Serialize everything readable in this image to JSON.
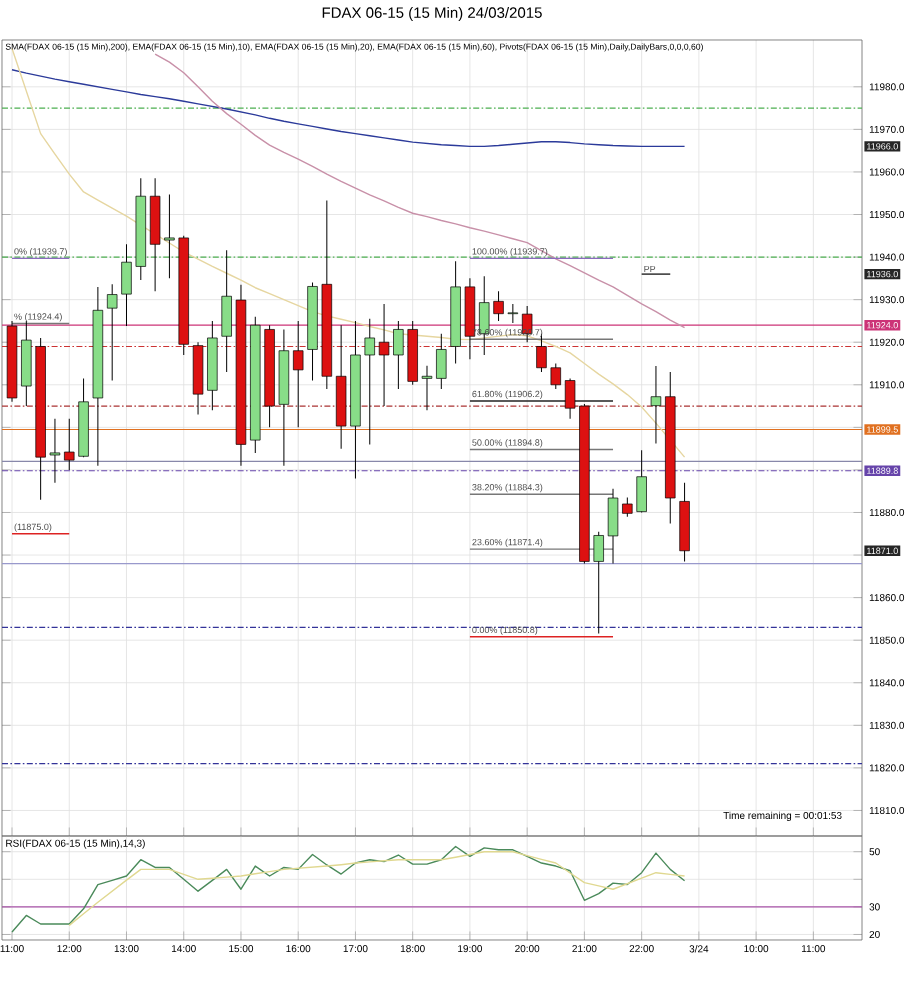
{
  "chart_data": [
    {
      "type": "candlestick",
      "title": "FDAX 06-15 (15 Min)  24/03/2015",
      "subtitle": "SMA(FDAX 06-15 (15 Min),200), EMA(FDAX 06-15 (15 Min),10), EMA(FDAX 06-15 (15 Min),20), EMA(FDAX 06-15 (15 Min),60), Pivots(FDAX 06-15 (15 Min),Daily,DailyBars,0,0,0,60)",
      "categories": [
        "11:00",
        null,
        null,
        null,
        "12:00",
        null,
        null,
        null,
        "13:00",
        null,
        null,
        null,
        "14:00",
        null,
        null,
        null,
        "15:00",
        null,
        null,
        null,
        "16:00",
        null,
        null,
        null,
        "17:00",
        null,
        null,
        null,
        "18:00",
        null,
        null,
        null,
        "19:00",
        null,
        null,
        null,
        "20:00",
        null,
        null,
        null,
        "21:00",
        null,
        null,
        null,
        "22:00",
        null,
        null,
        null,
        "3/24",
        null,
        null,
        null,
        "10:00",
        null,
        null,
        null,
        "11:00",
        null,
        null,
        null
      ],
      "ohlc": [
        [
          11923.8,
          11925,
          11906,
          11906.9
        ],
        [
          11909.7,
          11925,
          11905,
          11920.5
        ],
        [
          11919,
          11921,
          11883,
          11893
        ],
        [
          11893.5,
          11902,
          11887,
          11894
        ],
        [
          11894.2,
          11902,
          11890,
          11892.3
        ],
        [
          11893.2,
          11911.5,
          11893,
          11906
        ],
        [
          11906.9,
          11933,
          11891,
          11927.5
        ],
        [
          11928,
          11933.6,
          11911,
          11931.2
        ],
        [
          11931.3,
          11943,
          11923.8,
          11938.8
        ],
        [
          11937.8,
          11958.5,
          11934.6,
          11954.3
        ],
        [
          11954.3,
          11958.5,
          11932,
          11943
        ],
        [
          11944,
          11954.7,
          11935,
          11944.5
        ],
        [
          11944.5,
          11945,
          11917,
          11919.5
        ],
        [
          11919.2,
          11920,
          11903,
          11907.8
        ],
        [
          11908.7,
          11925,
          11904,
          11921
        ],
        [
          11921.4,
          11941.6,
          11913,
          11930.8
        ],
        [
          11929.9,
          11933.5,
          11891,
          11896
        ],
        [
          11897,
          11926,
          11894,
          11924
        ],
        [
          11923,
          11924,
          11900,
          11905
        ],
        [
          11905.4,
          11923,
          11891,
          11918
        ],
        [
          11918,
          11925,
          11900,
          11913.5
        ],
        [
          11918.3,
          11934,
          11911,
          11933.1
        ],
        [
          11933.6,
          11953.3,
          11909,
          11912
        ],
        [
          11912,
          11924,
          11895,
          11900.3
        ],
        [
          11900.3,
          11925,
          11888,
          11917
        ],
        [
          11917,
          11925.5,
          11896,
          11921
        ],
        [
          11920,
          11929,
          11905,
          11917
        ],
        [
          11917,
          11925,
          11909,
          11923
        ],
        [
          11923,
          11925,
          11910,
          11910.8
        ],
        [
          11911.5,
          11914.5,
          11904,
          11912
        ],
        [
          11911.5,
          11922,
          11909,
          11918.3
        ],
        [
          11919,
          11939,
          11915,
          11933
        ],
        [
          11933,
          11935,
          11916,
          11921.4
        ],
        [
          11922,
          11935.5,
          11917,
          11929.3
        ],
        [
          11929.6,
          11932,
          11925,
          11926.7
        ],
        [
          11926.7,
          11929,
          11924.5,
          11926.9
        ],
        [
          11926.6,
          11928.5,
          11920,
          11922
        ],
        [
          11919,
          11922,
          11913,
          11914
        ],
        [
          11914,
          11915,
          11909,
          11910
        ],
        [
          11911,
          11911.5,
          11902,
          11904.5
        ],
        [
          11905,
          11905.5,
          11868,
          11868.5
        ],
        [
          11868.5,
          11875.5,
          11851.6,
          11874.6
        ],
        [
          11874.5,
          11885.6,
          11868,
          11883.4
        ],
        [
          11882,
          11883.5,
          11879,
          11879.8
        ],
        [
          11880.2,
          11894.6,
          11880,
          11888.4
        ],
        [
          11905.1,
          11914.4,
          11896.2,
          11907.2
        ],
        [
          11907.2,
          11913,
          11877.4,
          11883.4
        ],
        [
          11882.6,
          11887,
          11868.5,
          11871.0
        ],
        null,
        null,
        null,
        null,
        null,
        null,
        null,
        null,
        null,
        null,
        null,
        null
      ],
      "series": [
        {
          "type": "line",
          "color": "#2b3a9a",
          "values": [
            11984,
            11983.2,
            11982.5,
            11981.8,
            11981.2,
            11980.6,
            11980,
            11979.4,
            11978.8,
            11978.2,
            11977.7,
            11977.2,
            11976.6,
            11976,
            11975.4,
            11974.8,
            11974.1,
            11973.4,
            11972.6,
            11971.9,
            11971.3,
            11970.7,
            11970.1,
            11969.5,
            11969,
            11968.5,
            11968,
            11967.5,
            11967,
            11966.7,
            11966.4,
            11966.2,
            11966,
            11966,
            11966.2,
            11966.5,
            11966.8,
            11967.1,
            11967.1,
            11966.9,
            11966.6,
            11966.4,
            11966.2,
            11966.1,
            11966,
            11966,
            11966,
            11966,
            null,
            null,
            null,
            null,
            null,
            null,
            null,
            null,
            null,
            null,
            null,
            null
          ]
        },
        {
          "type": "line",
          "color": "#c890a8",
          "values": [
            null,
            null,
            null,
            null,
            null,
            null,
            null,
            null,
            null,
            null,
            11987.7,
            11985.8,
            11983.3,
            11980,
            11976.6,
            11973.7,
            11971.2,
            11968.6,
            11966.3,
            11964.6,
            11963,
            11961.3,
            11959.5,
            11957.8,
            11956.2,
            11954.6,
            11953.2,
            11951.7,
            11950.3,
            11949.5,
            11948.6,
            11947.8,
            11946.9,
            11946.1,
            11945.2,
            11944.3,
            11943.4,
            11941.5,
            11939.6,
            11938,
            11936.3,
            11934.6,
            11933,
            11931,
            11929,
            11927.2,
            11925.2,
            11923.4,
            null,
            null,
            null,
            null,
            null,
            null,
            null,
            null,
            null,
            null,
            null,
            null
          ]
        },
        {
          "type": "line",
          "color": "#e6d6a0",
          "values": [
            11989,
            11979,
            11969,
            11964.2,
            11959.5,
            11955.3,
            11953.4,
            11951.5,
            11949.6,
            11947.5,
            11945.4,
            11943.3,
            11941.2,
            11939.5,
            11937.8,
            11936.2,
            11934.6,
            11932.8,
            11931.4,
            11930,
            11928.6,
            11927.2,
            11926.2,
            11925.4,
            11924.6,
            11923.7,
            11922.9,
            11922,
            11921.7,
            11921.4,
            11921.1,
            11920.7,
            11920.6,
            11921,
            11921.4,
            11921.8,
            11921.5,
            11920.3,
            11919,
            11917.5,
            11915,
            11912.5,
            11910.2,
            11907.7,
            11904.8,
            11901,
            11897,
            11893,
            null,
            null,
            null,
            null,
            null,
            null,
            null,
            null,
            null,
            null,
            null,
            null
          ]
        },
        {
          "type": "line",
          "color": "#8a6abf",
          "values": [
            null,
            null,
            null,
            null,
            null,
            null,
            null,
            null,
            null,
            null,
            null,
            null,
            null,
            null,
            null,
            null,
            null,
            null,
            null,
            null,
            null,
            null,
            null,
            null,
            null,
            null,
            null,
            null,
            null,
            null,
            null,
            null,
            11939.7,
            11939.7,
            11939.7,
            11939.7,
            11939.7,
            11939.7,
            11939.7,
            11939.7,
            11939.7,
            11939.7,
            11939.7,
            null,
            null,
            null,
            null,
            null,
            null,
            null,
            null,
            null,
            null,
            null,
            null,
            null,
            null,
            null,
            null,
            null
          ]
        },
        {
          "type": "line",
          "color": "#777777",
          "values": [
            null,
            null,
            null,
            null,
            null,
            null,
            null,
            null,
            null,
            null,
            null,
            null,
            null,
            null,
            null,
            null,
            null,
            null,
            null,
            null,
            null,
            null,
            null,
            null,
            null,
            null,
            null,
            null,
            null,
            null,
            null,
            null,
            11920.7,
            11920.7,
            11920.7,
            11920.7,
            11920.7,
            11920.7,
            11920.7,
            11920.7,
            11920.7,
            11920.7,
            11920.7,
            null,
            null,
            null,
            null,
            null,
            null,
            null,
            null,
            null,
            null,
            null,
            null,
            null,
            null,
            null,
            null,
            null
          ]
        },
        {
          "type": "line",
          "color": "#222222",
          "values": [
            null,
            null,
            null,
            null,
            null,
            null,
            null,
            null,
            null,
            null,
            null,
            null,
            null,
            null,
            null,
            null,
            null,
            null,
            null,
            null,
            null,
            null,
            null,
            null,
            null,
            null,
            null,
            null,
            null,
            null,
            null,
            null,
            11906.2,
            11906.2,
            11906.2,
            11906.2,
            11906.2,
            11906.2,
            11906.2,
            11906.2,
            11906.2,
            11906.2,
            11906.2,
            null,
            null,
            null,
            null,
            null,
            null,
            null,
            null,
            null,
            null,
            null,
            null,
            null,
            null,
            null,
            null,
            null
          ]
        },
        {
          "type": "line",
          "color": "#777777",
          "values": [
            null,
            null,
            null,
            null,
            null,
            null,
            null,
            null,
            null,
            null,
            null,
            null,
            null,
            null,
            null,
            null,
            null,
            null,
            null,
            null,
            null,
            null,
            null,
            null,
            null,
            null,
            null,
            null,
            null,
            null,
            null,
            null,
            11894.8,
            11894.8,
            11894.8,
            11894.8,
            11894.8,
            11894.8,
            11894.8,
            11894.8,
            11894.8,
            11894.8,
            11894.8,
            null,
            null,
            null,
            null,
            null,
            null,
            null,
            null,
            null,
            null,
            null,
            null,
            null,
            null,
            null,
            null,
            null
          ]
        },
        {
          "type": "line",
          "color": "#777777",
          "values": [
            null,
            null,
            null,
            null,
            null,
            null,
            null,
            null,
            null,
            null,
            null,
            null,
            null,
            null,
            null,
            null,
            null,
            null,
            null,
            null,
            null,
            null,
            null,
            null,
            null,
            null,
            null,
            null,
            null,
            null,
            null,
            null,
            11884.3,
            11884.3,
            11884.3,
            11884.3,
            11884.3,
            11884.3,
            11884.3,
            11884.3,
            11884.3,
            11884.3,
            11884.3,
            null,
            null,
            null,
            null,
            null,
            null,
            null,
            null,
            null,
            null,
            null,
            null,
            null,
            null,
            null,
            null,
            null
          ]
        },
        {
          "type": "line",
          "color": "#777777",
          "values": [
            null,
            null,
            null,
            null,
            null,
            null,
            null,
            null,
            null,
            null,
            null,
            null,
            null,
            null,
            null,
            null,
            null,
            null,
            null,
            null,
            null,
            null,
            null,
            null,
            null,
            null,
            null,
            null,
            null,
            null,
            null,
            null,
            11871.4,
            11871.4,
            11871.4,
            11871.4,
            11871.4,
            11871.4,
            11871.4,
            11871.4,
            11871.4,
            11871.4,
            11871.4,
            null,
            null,
            null,
            null,
            null,
            null,
            null,
            null,
            null,
            null,
            null,
            null,
            null,
            null,
            null,
            null,
            null
          ]
        },
        {
          "type": "line",
          "color": "#dd2222",
          "values": [
            null,
            null,
            null,
            null,
            null,
            null,
            null,
            null,
            null,
            null,
            null,
            null,
            null,
            null,
            null,
            null,
            null,
            null,
            null,
            null,
            null,
            null,
            null,
            null,
            null,
            null,
            null,
            null,
            null,
            null,
            null,
            null,
            11850.8,
            11850.8,
            11850.8,
            11850.8,
            11850.8,
            11850.8,
            11850.8,
            11850.8,
            11850.8,
            11850.8,
            11850.8,
            null,
            null,
            null,
            null,
            null,
            null,
            null,
            null,
            null,
            null,
            null,
            null,
            null,
            null,
            null,
            null,
            null
          ]
        },
        {
          "type": "line",
          "color": "#8a6abf",
          "values": [
            11939.7,
            11939.7,
            11939.7,
            11939.7,
            11939.7,
            null,
            null,
            null,
            null,
            null,
            null,
            null,
            null,
            null,
            null,
            null,
            null,
            null,
            null,
            null,
            null,
            null,
            null,
            null,
            null,
            null,
            null,
            null,
            null,
            null,
            null,
            null,
            null,
            null,
            null,
            null,
            null,
            null,
            null,
            null,
            null,
            null,
            null,
            null,
            null,
            null,
            null,
            null,
            null,
            null,
            null,
            null,
            null,
            null,
            null,
            null,
            null,
            null,
            null,
            null
          ]
        },
        {
          "type": "line",
          "color": "#777777",
          "values": [
            11924.4,
            11924.4,
            11924.4,
            11924.4,
            11924.4,
            null,
            null,
            null,
            null,
            null,
            null,
            null,
            null,
            null,
            null,
            null,
            null,
            null,
            null,
            null,
            null,
            null,
            null,
            null,
            null,
            null,
            null,
            null,
            null,
            null,
            null,
            null,
            null,
            null,
            null,
            null,
            null,
            null,
            null,
            null,
            null,
            null,
            null,
            null,
            null,
            null,
            null,
            null,
            null,
            null,
            null,
            null,
            null,
            null,
            null,
            null,
            null,
            null,
            null,
            null
          ]
        },
        {
          "type": "line",
          "color": "#dd2222",
          "values": [
            11875,
            11875,
            11875,
            11875,
            11875,
            null,
            null,
            null,
            null,
            null,
            null,
            null,
            null,
            null,
            null,
            null,
            null,
            null,
            null,
            null,
            null,
            null,
            null,
            null,
            null,
            null,
            null,
            null,
            null,
            null,
            null,
            null,
            null,
            null,
            null,
            null,
            null,
            null,
            null,
            null,
            null,
            null,
            null,
            null,
            null,
            null,
            null,
            null,
            null,
            null,
            null,
            null,
            null,
            null,
            null,
            null,
            null,
            null,
            null,
            null
          ]
        },
        {
          "type": "line",
          "color": "#222222",
          "values": [
            null,
            null,
            null,
            null,
            null,
            null,
            null,
            null,
            null,
            null,
            null,
            null,
            null,
            null,
            null,
            null,
            null,
            null,
            null,
            null,
            null,
            null,
            null,
            null,
            null,
            null,
            null,
            null,
            null,
            null,
            null,
            null,
            null,
            null,
            null,
            null,
            null,
            null,
            null,
            null,
            null,
            null,
            null,
            null,
            11936,
            11936,
            11936,
            null,
            null,
            null,
            null,
            null,
            null,
            null,
            null,
            null,
            null,
            null,
            null,
            null
          ]
        }
      ],
      "ylim": [
        11804,
        11991
      ],
      "yticks": [
        {
          "value": 11810,
          "label": "11810.0"
        },
        {
          "value": 11820,
          "label": "11820.0"
        },
        {
          "value": 11830,
          "label": "11830.0"
        },
        {
          "value": 11840,
          "label": "11840.0"
        },
        {
          "value": 11850,
          "label": "11850.0"
        },
        {
          "value": 11860,
          "label": "11860.0"
        },
        {
          "value": 11870,
          "label": null
        },
        {
          "value": 11880,
          "label": "11880.0"
        },
        {
          "value": 11890,
          "label": null
        },
        {
          "value": 11900,
          "label": null
        },
        {
          "value": 11910,
          "label": "11910.0"
        },
        {
          "value": 11920,
          "label": "11920.0"
        },
        {
          "value": 11930,
          "label": "11930.0"
        },
        {
          "value": 11940,
          "label": "11940.0"
        },
        {
          "value": 11950,
          "label": "11950.0"
        },
        {
          "value": 11960,
          "label": "11960.0"
        },
        {
          "value": 11970,
          "label": "11970.0"
        },
        {
          "value": 11980,
          "label": "11980.0"
        }
      ],
      "y2lim": [
        11804,
        11991
      ],
      "y2ticks": [
        {
          "value": 11966,
          "label": "11966.0"
        },
        {
          "value": 11936,
          "label": "11936.0"
        },
        {
          "value": 11871,
          "label": "11871.0"
        }
      ],
      "tick_labels": "y",
      "grid": true,
      "ref_lines": [
        {
          "axis": "y",
          "value": 11975,
          "color": "#4caf50",
          "line_style": "dashed"
        },
        {
          "axis": "y",
          "value": 11940,
          "color": "#4caf50",
          "line_style": "dashed"
        },
        {
          "axis": "y",
          "value": 11924,
          "color": "#cc3377",
          "line_style": "solid",
          "label": "11924.0"
        },
        {
          "axis": "y",
          "value": 11919,
          "color": "#cc3333",
          "line_style": "dashed"
        },
        {
          "axis": "y",
          "value": 11905,
          "color": "#aa3333",
          "line_style": "dashed"
        },
        {
          "axis": "y",
          "value": 11899.5,
          "color": "#e07020",
          "line_style": "solid",
          "label": "11899.5"
        },
        {
          "axis": "y",
          "value": 11892,
          "color": "#8888aa",
          "line_style": "solid"
        },
        {
          "axis": "y",
          "value": 11889.8,
          "color": "#6644aa",
          "line_style": "dashed",
          "label": "11889.8"
        },
        {
          "axis": "y",
          "value": 11868,
          "color": "#9999cc",
          "line_style": "solid"
        },
        {
          "axis": "y",
          "value": 11853,
          "color": "#333399",
          "line_style": "dashed"
        },
        {
          "axis": "y",
          "value": 11821,
          "color": "#333399",
          "line_style": "dashed"
        }
      ],
      "annotations": [
        "Time remaining = 00:01:53",
        {
          "text": "100.00% (11939.7)",
          "x": "19:00",
          "y": 11939.7
        },
        {
          "text": "78.60% (11920.7)",
          "x": "19:00",
          "y": 11920.7
        },
        {
          "text": "61.80% (11906.2)",
          "x": "19:00",
          "y": 11906.2
        },
        {
          "text": "50.00% (11894.8)",
          "x": "19:00",
          "y": 11894.8
        },
        {
          "text": "38.20% (11884.3)",
          "x": "19:00",
          "y": 11884.3
        },
        {
          "text": "23.60% (11871.4)",
          "x": "19:00",
          "y": 11871.4
        },
        {
          "text": "0.00% (11850.8)",
          "x": "19:00",
          "y": 11850.8
        },
        {
          "text": "0% (11939.7)",
          "x": "11:00",
          "y": 11939.7
        },
        {
          "text": "% (11924.4)",
          "x": "11:00",
          "y": 11924.4
        },
        {
          "text": "(11875.0)",
          "x": "11:00",
          "y": 11875
        },
        {
          "text": "PP",
          "x": "22:00",
          "y": 11936
        }
      ]
    },
    {
      "type": "line",
      "title": "RSI(FDAX 06-15 (15 Min),14,3)",
      "categories": [
        "11:00",
        null,
        null,
        null,
        "12:00",
        null,
        null,
        null,
        "13:00",
        null,
        null,
        null,
        "14:00",
        null,
        null,
        null,
        "15:00",
        null,
        null,
        null,
        "16:00",
        null,
        null,
        null,
        "17:00",
        null,
        null,
        null,
        "18:00",
        null,
        null,
        null,
        "19:00",
        null,
        null,
        null,
        "20:00",
        null,
        null,
        null,
        "21:00",
        null,
        null,
        null,
        "22:00",
        null,
        null,
        null,
        "3/24",
        null,
        null,
        null,
        "10:00",
        null,
        null,
        null,
        "11:00",
        null,
        null,
        null
      ],
      "series": [
        {
          "color": "#4a8a5a",
          "values": [
            20.9,
            26.9,
            23.8,
            23.8,
            23.8,
            29.3,
            38.1,
            39.6,
            41.2,
            47.1,
            44.3,
            44.3,
            40,
            35.7,
            39.6,
            43.6,
            36.4,
            44.8,
            41.2,
            44.3,
            43.6,
            49.0,
            45.2,
            41.9,
            45.9,
            47.1,
            46.4,
            48.8,
            45.5,
            45.5,
            47.1,
            51.9,
            48.3,
            51.4,
            50.7,
            50.7,
            48.3,
            45.9,
            44.8,
            43.1,
            32.4,
            34.8,
            38.6,
            38.1,
            42.4,
            49.5,
            43.6,
            39.5,
            null,
            null,
            null,
            null,
            null,
            null,
            null,
            null,
            null,
            null,
            null,
            null
          ]
        },
        {
          "color": "#e0d890",
          "values": [
            null,
            null,
            null,
            null,
            23.3,
            27.5,
            31.7,
            35.7,
            39.7,
            43.6,
            43.6,
            43.6,
            41.8,
            40,
            40.4,
            40.8,
            41.2,
            42,
            42.8,
            43.6,
            44,
            44.4,
            44.8,
            45.3,
            45.9,
            46.3,
            46.7,
            47.1,
            47.1,
            47.1,
            47.1,
            48,
            49,
            50,
            50,
            50,
            48.6,
            47.2,
            45.9,
            42.3,
            38.8,
            37.6,
            36.4,
            38.4,
            40.4,
            42.4,
            41.8,
            41.2,
            null,
            null,
            null,
            null,
            null,
            null,
            null,
            null,
            null,
            null,
            null,
            null
          ]
        }
      ],
      "ylim": [
        18,
        55.7
      ],
      "yticks": [
        20,
        30,
        {
          "value": 40,
          "label": null
        },
        50
      ],
      "grid": true,
      "ref_lines": [
        {
          "axis": "y",
          "value": 30,
          "color": "#aa55aa",
          "line_style": "solid"
        }
      ]
    }
  ]
}
